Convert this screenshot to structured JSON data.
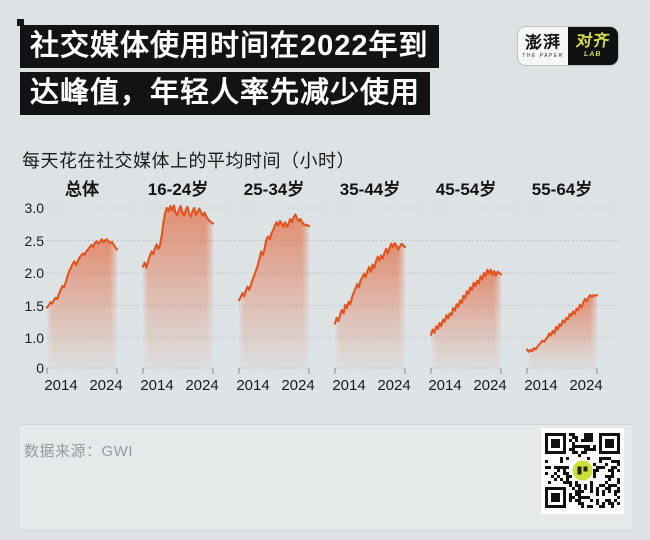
{
  "page": {
    "background": "#dde3e5"
  },
  "header": {
    "title_line1": "社交媒体使用时间在2022年到",
    "title_line2": "达峰值，年轻人率先减少使用",
    "title_bg": "#131313",
    "title_color": "#ffffff"
  },
  "logo": {
    "paper_name": "澎湃",
    "paper_sub": "THE PAPER",
    "lab_name": "对齐",
    "lab_sub": "LAB",
    "accent_color": "#d6e14b"
  },
  "subtitle": "每天花在社交媒体上的平均时间（小时）",
  "footer": {
    "source_label": "数据来源：GWI"
  },
  "chart_data": {
    "type": "area",
    "title": "每天花在社交媒体上的平均时间（小时）",
    "unit": "小时",
    "x_range": [
      2014,
      2024
    ],
    "x_tick_labels": [
      "2014",
      "2024"
    ],
    "y_ticks": [
      "3.0",
      "2.5",
      "2.0",
      "1.5",
      "1.0",
      "0"
    ],
    "y_tick_values": [
      3.0,
      2.5,
      2.0,
      1.5,
      1.0,
      0
    ],
    "grid": true,
    "legend": "none",
    "line_color": "#e5531d",
    "fill_color": "#e45526",
    "series": [
      {
        "name": "总体",
        "values": [
          1.47,
          1.5,
          1.55,
          1.53,
          1.58,
          1.62,
          1.6,
          1.68,
          1.74,
          1.8,
          1.78,
          1.86,
          1.95,
          2.03,
          2.08,
          2.14,
          2.18,
          2.12,
          2.18,
          2.24,
          2.27,
          2.3,
          2.28,
          2.33,
          2.36,
          2.4,
          2.43,
          2.4,
          2.46,
          2.49,
          2.45,
          2.48,
          2.52,
          2.47,
          2.5,
          2.52,
          2.49,
          2.46,
          2.48,
          2.44,
          2.39,
          2.36
        ]
      },
      {
        "name": "16-24岁",
        "values": [
          2.1,
          2.16,
          2.08,
          2.18,
          2.26,
          2.33,
          2.29,
          2.38,
          2.44,
          2.37,
          2.43,
          2.58,
          2.78,
          2.93,
          3.0,
          2.95,
          3.03,
          2.96,
          3.04,
          2.93,
          2.89,
          2.97,
          3.03,
          2.94,
          2.88,
          2.96,
          3.02,
          2.91,
          2.87,
          2.95,
          3.0,
          2.89,
          2.94,
          2.99,
          2.93,
          2.88,
          2.93,
          2.87,
          2.83,
          2.8,
          2.78,
          2.76
        ]
      },
      {
        "name": "25-34岁",
        "values": [
          1.58,
          1.63,
          1.69,
          1.64,
          1.73,
          1.79,
          1.74,
          1.82,
          1.9,
          1.97,
          2.04,
          2.12,
          2.22,
          2.33,
          2.28,
          2.37,
          2.51,
          2.56,
          2.52,
          2.61,
          2.66,
          2.73,
          2.78,
          2.73,
          2.8,
          2.76,
          2.71,
          2.78,
          2.71,
          2.76,
          2.83,
          2.78,
          2.86,
          2.9,
          2.84,
          2.8,
          2.83,
          2.78,
          2.75,
          2.73,
          2.74,
          2.72
        ]
      },
      {
        "name": "35-44岁",
        "values": [
          1.22,
          1.31,
          1.26,
          1.36,
          1.43,
          1.38,
          1.51,
          1.46,
          1.56,
          1.52,
          1.63,
          1.7,
          1.76,
          1.83,
          1.78,
          1.89,
          1.93,
          1.99,
          1.94,
          2.03,
          2.09,
          2.02,
          2.13,
          2.08,
          2.18,
          2.25,
          2.19,
          2.27,
          2.22,
          2.31,
          2.37,
          2.3,
          2.39,
          2.45,
          2.4,
          2.46,
          2.42,
          2.36,
          2.41,
          2.45,
          2.42,
          2.4
        ]
      },
      {
        "name": "45-54岁",
        "values": [
          1.05,
          1.13,
          1.08,
          1.18,
          1.14,
          1.23,
          1.18,
          1.28,
          1.25,
          1.35,
          1.3,
          1.38,
          1.35,
          1.46,
          1.42,
          1.52,
          1.48,
          1.58,
          1.54,
          1.65,
          1.61,
          1.72,
          1.68,
          1.78,
          1.74,
          1.85,
          1.8,
          1.88,
          1.84,
          1.95,
          1.9,
          2.0,
          1.95,
          2.05,
          1.99,
          2.05,
          1.97,
          2.03,
          1.96,
          2.02,
          2.0,
          1.98
        ]
      },
      {
        "name": "55-64岁",
        "values": [
          0.62,
          0.54,
          0.6,
          0.56,
          0.66,
          0.62,
          0.71,
          0.77,
          0.84,
          0.91,
          0.87,
          0.96,
          1.01,
          1.07,
          1.04,
          1.11,
          1.07,
          1.17,
          1.13,
          1.21,
          1.19,
          1.27,
          1.24,
          1.31,
          1.29,
          1.37,
          1.34,
          1.41,
          1.37,
          1.45,
          1.43,
          1.51,
          1.47,
          1.55,
          1.6,
          1.57,
          1.62,
          1.66,
          1.63,
          1.66,
          1.65,
          1.66
        ]
      }
    ]
  }
}
